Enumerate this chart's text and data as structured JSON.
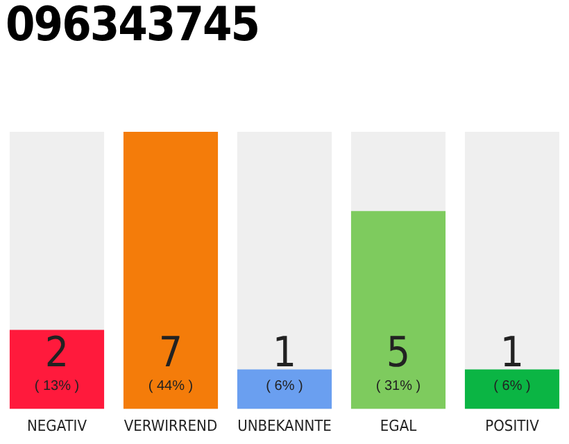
{
  "chart_data": {
    "type": "bar",
    "title": "096343745",
    "categories": [
      "NEGATIV",
      "VERWIRREND",
      "UNBEKANNTE",
      "EGAL",
      "POSITIV"
    ],
    "values": [
      2,
      7,
      1,
      5,
      1
    ],
    "colors": [
      "#ff1a3c",
      "#f47c0a",
      "#6a9ff0",
      "#7ecb5e",
      "#0bb544"
    ],
    "ylim": [
      0,
      7
    ],
    "data_labels": true,
    "legend": false,
    "grid": false,
    "annotations": [
      "( 13% )",
      "( 44% )",
      "( 6% )",
      "( 31% )",
      "( 6% )"
    ]
  }
}
